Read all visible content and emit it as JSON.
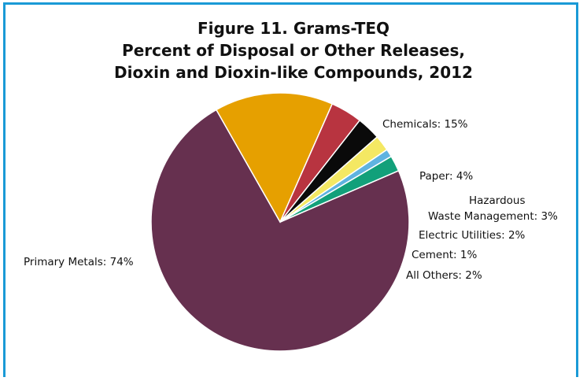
{
  "chart_data": {
    "type": "pie",
    "title": [
      "Figure 11. Grams-TEQ",
      "Percent of Disposal or Other Releases,",
      "Dioxin and Dioxin-like Compounds, 2012"
    ],
    "slices": [
      {
        "label": "Primary Metals: 74%",
        "value": 74,
        "color": "#66304f"
      },
      {
        "label": "Chemicals: 15%",
        "value": 15,
        "color": "#e6a000"
      },
      {
        "label": "Paper: 4%",
        "value": 4,
        "color": "#b83440"
      },
      {
        "label": [
          "Hazardous",
          "Waste Management: 3%"
        ],
        "value": 3,
        "color": "#0a0a0a"
      },
      {
        "label": "Electric Utilities: 2%",
        "value": 2,
        "color": "#f4e863"
      },
      {
        "label": "Cement: 1%",
        "value": 1,
        "color": "#5fb3e0"
      },
      {
        "label": "All Others: 2%",
        "value": 2,
        "color": "#12a07a"
      }
    ],
    "legend": "none"
  },
  "colors": {
    "frame_border": "#1a9ad6"
  }
}
